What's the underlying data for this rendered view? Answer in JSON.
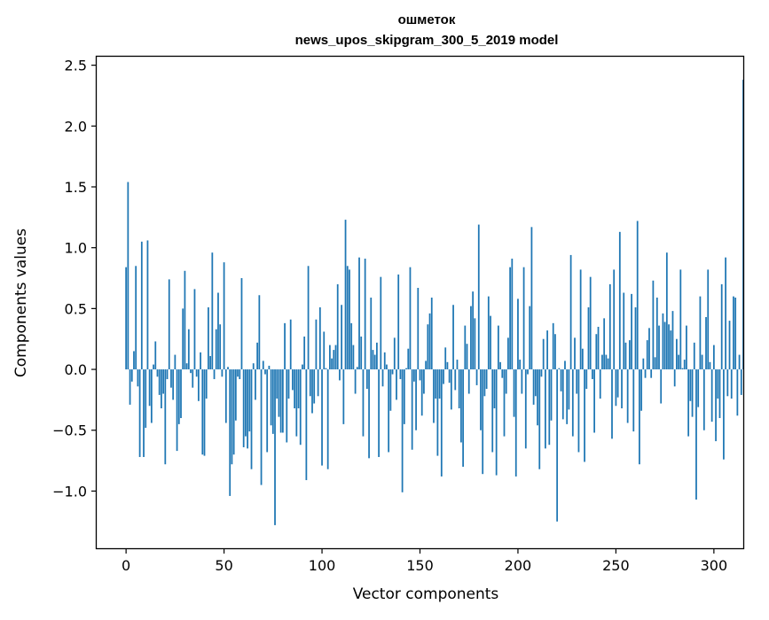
{
  "chart_data": {
    "type": "bar",
    "title_line1": "ошметок",
    "title_line2": "news_upos_skipgram_300_5_2019 model",
    "xlabel": "Vector components",
    "ylabel": "Components values",
    "xlim": [
      -15,
      315
    ],
    "ylim": [
      -1.47,
      2.57
    ],
    "x_ticks": [
      0,
      50,
      100,
      150,
      200,
      250,
      300
    ],
    "x_tick_labels": [
      "0",
      "50",
      "100",
      "150",
      "200",
      "250",
      "300"
    ],
    "y_ticks": [
      -1.0,
      -0.5,
      0.0,
      0.5,
      1.0,
      1.5,
      2.0,
      2.5
    ],
    "y_tick_labels": [
      "−1.0",
      "−0.5",
      "0.0",
      "0.5",
      "1.0",
      "1.5",
      "2.0",
      "2.5"
    ],
    "bar_color": "#1f77b4",
    "grid": false,
    "series": [
      {
        "name": "components",
        "values": [
          0.84,
          1.54,
          -0.29,
          -0.1,
          0.15,
          0.85,
          -0.14,
          -0.72,
          1.05,
          -0.72,
          -0.48,
          1.06,
          -0.3,
          -0.44,
          0.04,
          0.23,
          -0.06,
          -0.21,
          -0.32,
          -0.2,
          -0.78,
          -0.08,
          0.74,
          -0.15,
          -0.25,
          0.12,
          -0.67,
          -0.45,
          -0.4,
          0.5,
          0.81,
          0.05,
          0.33,
          -0.03,
          -0.15,
          0.66,
          -0.06,
          -0.26,
          0.14,
          -0.7,
          -0.71,
          -0.24,
          0.51,
          0.11,
          0.96,
          -0.08,
          0.33,
          0.63,
          0.37,
          -0.06,
          0.88,
          -0.44,
          0.02,
          -1.04,
          -0.78,
          -0.7,
          -0.42,
          -0.06,
          -0.08,
          0.75,
          -0.64,
          -0.55,
          -0.65,
          -0.51,
          -0.82,
          0.05,
          -0.25,
          0.22,
          0.61,
          -0.95,
          0.07,
          -0.04,
          -0.68,
          0.03,
          -0.46,
          -0.53,
          -1.28,
          -0.24,
          -0.39,
          -0.52,
          -0.52,
          0.38,
          -0.6,
          -0.24,
          0.41,
          -0.17,
          -0.32,
          -0.55,
          -0.32,
          -0.62,
          0.04,
          0.27,
          -0.91,
          0.85,
          -0.22,
          -0.36,
          -0.28,
          0.41,
          -0.22,
          0.51,
          -0.79,
          0.31,
          0.01,
          -0.82,
          0.2,
          0.09,
          0.16,
          0.2,
          0.7,
          -0.09,
          0.53,
          -0.45,
          1.23,
          0.85,
          0.82,
          0.38,
          0.2,
          -0.2,
          0.02,
          0.92,
          0.27,
          -0.55,
          0.91,
          -0.16,
          -0.73,
          0.59,
          0.16,
          0.12,
          0.22,
          -0.72,
          0.76,
          -0.14,
          0.14,
          0.04,
          -0.68,
          -0.34,
          -0.04,
          0.26,
          -0.25,
          0.78,
          -0.08,
          -1.01,
          -0.45,
          0.01,
          0.17,
          0.84,
          -0.66,
          -0.1,
          -0.5,
          0.67,
          -0.09,
          -0.38,
          -0.2,
          0.07,
          0.37,
          0.46,
          0.59,
          -0.44,
          -0.24,
          -0.71,
          -0.24,
          -0.88,
          -0.12,
          0.18,
          0.06,
          -0.11,
          -0.33,
          0.53,
          -0.17,
          0.08,
          -0.32,
          -0.6,
          -0.8,
          0.36,
          0.21,
          -0.2,
          0.52,
          0.64,
          0.42,
          -0.13,
          1.19,
          -0.5,
          -0.86,
          -0.22,
          -0.16,
          0.6,
          0.44,
          -0.68,
          -0.32,
          -0.87,
          0.36,
          0.06,
          -0.07,
          -0.55,
          -0.2,
          0.26,
          0.84,
          0.91,
          -0.39,
          -0.88,
          0.58,
          0.08,
          -0.2,
          0.84,
          -0.65,
          -0.04,
          0.52,
          1.17,
          -0.29,
          -0.22,
          -0.46,
          -0.82,
          -0.06,
          0.25,
          -0.65,
          0.32,
          -0.62,
          -0.42,
          0.38,
          0.29,
          -1.25,
          0.01,
          -0.18,
          -0.41,
          0.07,
          -0.45,
          -0.33,
          0.94,
          -0.55,
          0.26,
          -0.2,
          -0.68,
          0.82,
          0.17,
          -0.76,
          -0.16,
          0.51,
          0.76,
          -0.08,
          -0.52,
          0.29,
          0.35,
          -0.24,
          0.12,
          0.42,
          0.12,
          0.09,
          0.7,
          -0.57,
          0.82,
          -0.3,
          -0.23,
          1.13,
          -0.32,
          0.63,
          0.22,
          -0.44,
          0.24,
          0.62,
          -0.51,
          0.51,
          1.22,
          -0.78,
          -0.34,
          0.09,
          -0.07,
          0.24,
          0.34,
          -0.07,
          0.73,
          0.1,
          0.59,
          0.36,
          -0.28,
          0.46,
          0.39,
          0.96,
          0.37,
          0.32,
          0.48,
          -0.14,
          0.25,
          0.12,
          0.82,
          0.01,
          0.08,
          0.36,
          -0.55,
          -0.26,
          -0.39,
          0.22,
          -1.07,
          -0.31,
          0.6,
          0.12,
          -0.5,
          0.43,
          0.82,
          0.06,
          -0.43,
          0.2,
          -0.59,
          -0.24,
          -0.4,
          0.7,
          -0.74,
          0.92,
          -0.22,
          0.4,
          -0.24,
          0.6,
          0.59,
          -0.38,
          0.12,
          -0.21,
          2.38
        ]
      }
    ]
  }
}
